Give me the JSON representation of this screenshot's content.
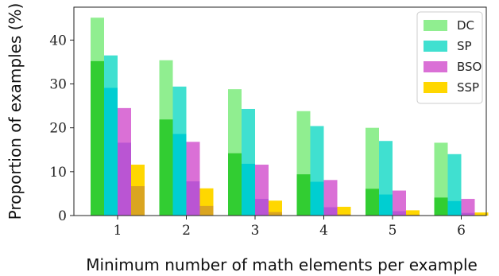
{
  "chart_data": {
    "type": "bar",
    "categories": [
      "1",
      "2",
      "3",
      "4",
      "5",
      "6"
    ],
    "xlabel": "Minimum number of math elements per example",
    "ylabel": "Proportion of examples (%)",
    "ylim": [
      0,
      47.5
    ],
    "yticks": [
      0,
      10,
      20,
      30,
      40
    ],
    "legend_position": "top-right",
    "series": [
      {
        "name": "DC",
        "values": [
          45.1,
          35.4,
          28.8,
          23.8,
          20.0,
          16.6
        ],
        "inner_values": [
          35.2,
          21.9,
          14.2,
          9.4,
          6.1,
          4.1
        ],
        "color": "#90ee90",
        "inner_color": "#32cd32"
      },
      {
        "name": "SP",
        "values": [
          36.5,
          29.4,
          24.3,
          20.4,
          17.0,
          14.0
        ],
        "inner_values": [
          29.1,
          18.6,
          11.8,
          7.7,
          4.8,
          3.3
        ],
        "color": "#40e0d0",
        "inner_color": "#00ced1"
      },
      {
        "name": "BSO",
        "values": [
          24.5,
          16.8,
          11.6,
          8.1,
          5.7,
          3.8
        ],
        "inner_values": [
          16.6,
          7.8,
          3.8,
          1.9,
          1.0,
          0.6
        ],
        "color": "#da70d6",
        "inner_color": "#ba55d3"
      },
      {
        "name": "SSP",
        "values": [
          11.6,
          6.2,
          3.4,
          2.0,
          1.2,
          0.7
        ],
        "inner_values": [
          6.7,
          2.2,
          0.8,
          0.3,
          0.2,
          0.1
        ],
        "color": "#ffd700",
        "inner_color": "#daa520"
      }
    ]
  }
}
